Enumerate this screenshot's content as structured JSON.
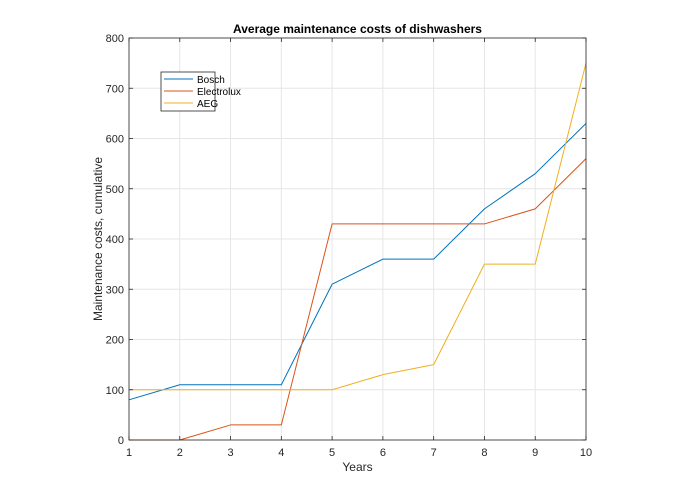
{
  "chart_data": {
    "type": "line",
    "title": "Average maintenance costs of dishwashers",
    "xlabel": "Years",
    "ylabel": "Maintenance costs, cumulative",
    "x": [
      1,
      2,
      3,
      4,
      5,
      6,
      7,
      8,
      9,
      10
    ],
    "xlim": [
      1,
      10
    ],
    "ylim": [
      0,
      800
    ],
    "xticks": [
      1,
      2,
      3,
      4,
      5,
      6,
      7,
      8,
      9,
      10
    ],
    "yticks": [
      0,
      100,
      200,
      300,
      400,
      500,
      600,
      700,
      800
    ],
    "grid": true,
    "legend_position": "top-left",
    "series": [
      {
        "name": "Bosch",
        "color": "#0072BD",
        "values": [
          80,
          110,
          110,
          110,
          310,
          360,
          360,
          460,
          530,
          630
        ]
      },
      {
        "name": "Electrolux",
        "color": "#D95319",
        "values": [
          0,
          0,
          30,
          30,
          430,
          430,
          430,
          430,
          460,
          560
        ]
      },
      {
        "name": "AEG",
        "color": "#EDB120",
        "values": [
          100,
          100,
          100,
          100,
          100,
          130,
          150,
          350,
          350,
          750
        ]
      }
    ]
  }
}
